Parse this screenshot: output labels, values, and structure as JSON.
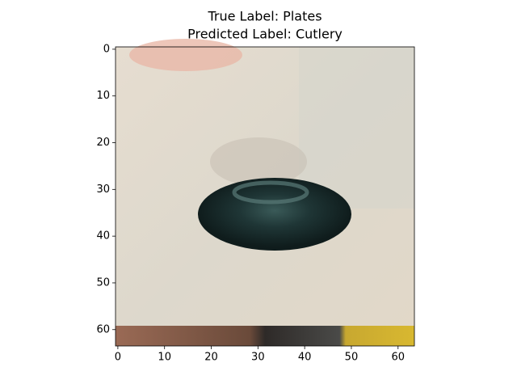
{
  "chart_data": {
    "type": "image",
    "title": [
      "True Label: Plates",
      "Predicted Label: Cutlery"
    ],
    "xlim": [
      -0.5,
      63.5
    ],
    "ylim": [
      63.5,
      -0.5
    ],
    "xticks": [
      0,
      10,
      20,
      30,
      40,
      50,
      60
    ],
    "yticks": [
      0,
      10,
      20,
      30,
      40,
      50,
      60
    ]
  }
}
